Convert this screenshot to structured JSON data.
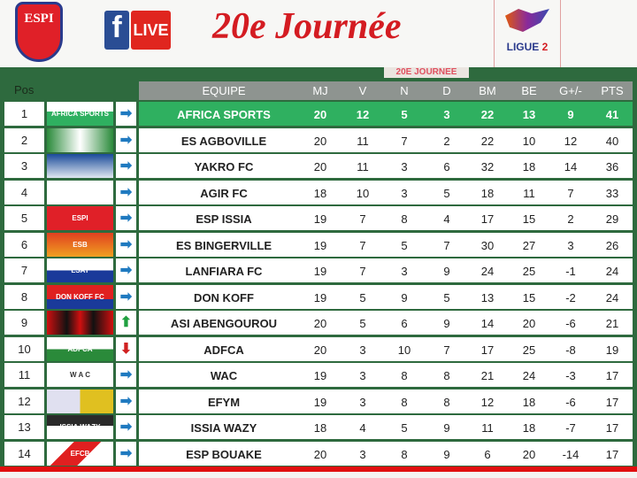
{
  "header": {
    "club_logo_text": "ESPI",
    "fb_text": "f",
    "live_label": "LIVE",
    "title": "20e Journée",
    "league_label": "LIGUE",
    "league_num": "2"
  },
  "board": {
    "journee_label": "20E JOURNEE",
    "pos_label": "Pos",
    "columns": [
      "EQUIPE",
      "MJ",
      "V",
      "N",
      "D",
      "BM",
      "BE",
      "G+/-",
      "PTS"
    ],
    "accent": "#2fb060",
    "arrow_colors": {
      "same": "#1f7ac0",
      "up": "#20a040",
      "down": "#d02020"
    },
    "rows": [
      {
        "pos": "1",
        "logo": "AFRICA SPORTS D'ABIDJAN",
        "trend": "same",
        "team": "AFRICA SPORTS",
        "mj": "20",
        "v": "12",
        "n": "5",
        "d": "3",
        "bm": "22",
        "be": "13",
        "gd": "9",
        "pts": "41"
      },
      {
        "pos": "2",
        "logo": "",
        "trend": "same",
        "team": "ES AGBOVILLE",
        "mj": "20",
        "v": "11",
        "n": "7",
        "d": "2",
        "bm": "22",
        "be": "10",
        "gd": "12",
        "pts": "40"
      },
      {
        "pos": "3",
        "logo": "",
        "trend": "same",
        "team": "YAKRO FC",
        "mj": "20",
        "v": "11",
        "n": "3",
        "d": "6",
        "bm": "32",
        "be": "18",
        "gd": "14",
        "pts": "36"
      },
      {
        "pos": "4",
        "logo": "",
        "trend": "same",
        "team": "AGIR FC",
        "mj": "18",
        "v": "10",
        "n": "3",
        "d": "5",
        "bm": "18",
        "be": "11",
        "gd": "7",
        "pts": "33"
      },
      {
        "pos": "5",
        "logo": "ESPI",
        "trend": "same",
        "team": "ESP ISSIA",
        "mj": "19",
        "v": "7",
        "n": "8",
        "d": "4",
        "bm": "17",
        "be": "15",
        "gd": "2",
        "pts": "29"
      },
      {
        "pos": "6",
        "logo": "ESB",
        "trend": "same",
        "team": "ES BINGERVILLE",
        "mj": "19",
        "v": "7",
        "n": "5",
        "d": "7",
        "bm": "30",
        "be": "27",
        "gd": "3",
        "pts": "26"
      },
      {
        "pos": "7",
        "logo": "LSAT",
        "trend": "same",
        "team": "LANFIARA FC",
        "mj": "19",
        "v": "7",
        "n": "3",
        "d": "9",
        "bm": "24",
        "be": "25",
        "gd": "-1",
        "pts": "24"
      },
      {
        "pos": "8",
        "logo": "DON KOFF FC",
        "trend": "same",
        "team": "DON KOFF",
        "mj": "19",
        "v": "5",
        "n": "9",
        "d": "5",
        "bm": "13",
        "be": "15",
        "gd": "-2",
        "pts": "24"
      },
      {
        "pos": "9",
        "logo": "",
        "trend": "up",
        "team": "ASI ABENGOUROU",
        "mj": "20",
        "v": "5",
        "n": "6",
        "d": "9",
        "bm": "14",
        "be": "20",
        "gd": "-6",
        "pts": "21"
      },
      {
        "pos": "10",
        "logo": "ADFCA",
        "trend": "down",
        "team": "ADFCA",
        "mj": "20",
        "v": "3",
        "n": "10",
        "d": "7",
        "bm": "17",
        "be": "25",
        "gd": "-8",
        "pts": "19"
      },
      {
        "pos": "11",
        "logo": "W A C",
        "trend": "same",
        "team": "WAC",
        "mj": "19",
        "v": "3",
        "n": "8",
        "d": "8",
        "bm": "21",
        "be": "24",
        "gd": "-3",
        "pts": "17"
      },
      {
        "pos": "12",
        "logo": "",
        "trend": "same",
        "team": "EFYM",
        "mj": "19",
        "v": "3",
        "n": "8",
        "d": "8",
        "bm": "12",
        "be": "18",
        "gd": "-6",
        "pts": "17"
      },
      {
        "pos": "13",
        "logo": "ISSIA WAZY l'indomptable",
        "trend": "same",
        "team": "ISSIA WAZY",
        "mj": "18",
        "v": "4",
        "n": "5",
        "d": "9",
        "bm": "11",
        "be": "18",
        "gd": "-7",
        "pts": "17"
      },
      {
        "pos": "14",
        "logo": "EFCB",
        "trend": "same",
        "team": "ESP BOUAKE",
        "mj": "20",
        "v": "3",
        "n": "8",
        "d": "9",
        "bm": "6",
        "be": "20",
        "gd": "-14",
        "pts": "17"
      }
    ]
  }
}
